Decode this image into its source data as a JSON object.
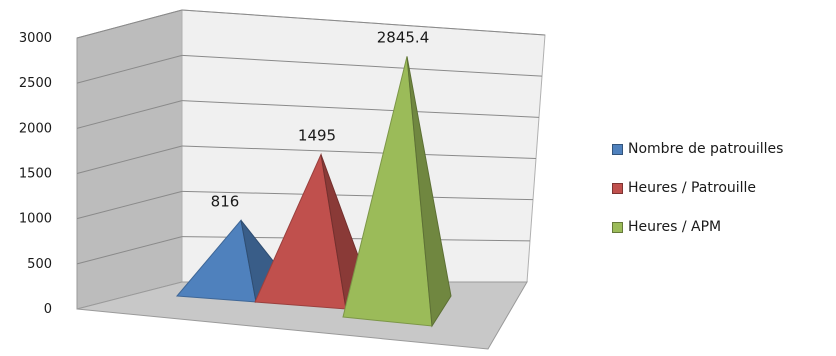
{
  "chart_data": {
    "type": "bar",
    "subtype": "3d-pyramid",
    "categories": [
      "Nombre de patrouilles",
      "Heures / Patrouille",
      "Heures / APM"
    ],
    "values": [
      816,
      1495,
      2845.4
    ],
    "data_labels": [
      "816",
      "1495",
      "2845.4"
    ],
    "title": "",
    "xlabel": "",
    "ylabel": "",
    "ylim": [
      0,
      3000
    ],
    "yticks": [
      "0",
      "500",
      "1000",
      "1500",
      "2000",
      "2500",
      "3000"
    ],
    "grid": true,
    "legend_position": "right",
    "series": [
      {
        "name": "Nombre de patrouilles",
        "value": 816,
        "color": "#4f81bd"
      },
      {
        "name": "Heures / Patrouille",
        "value": 1495,
        "color": "#c0504d"
      },
      {
        "name": "Heures / APM",
        "value": 2845.4,
        "color": "#9bbb59"
      }
    ]
  },
  "colors": {
    "wall": "#f0f0f0",
    "side_wall": "#bcbcbc",
    "floor": "#c8c8c8",
    "gridline": "#8a8a8a"
  }
}
